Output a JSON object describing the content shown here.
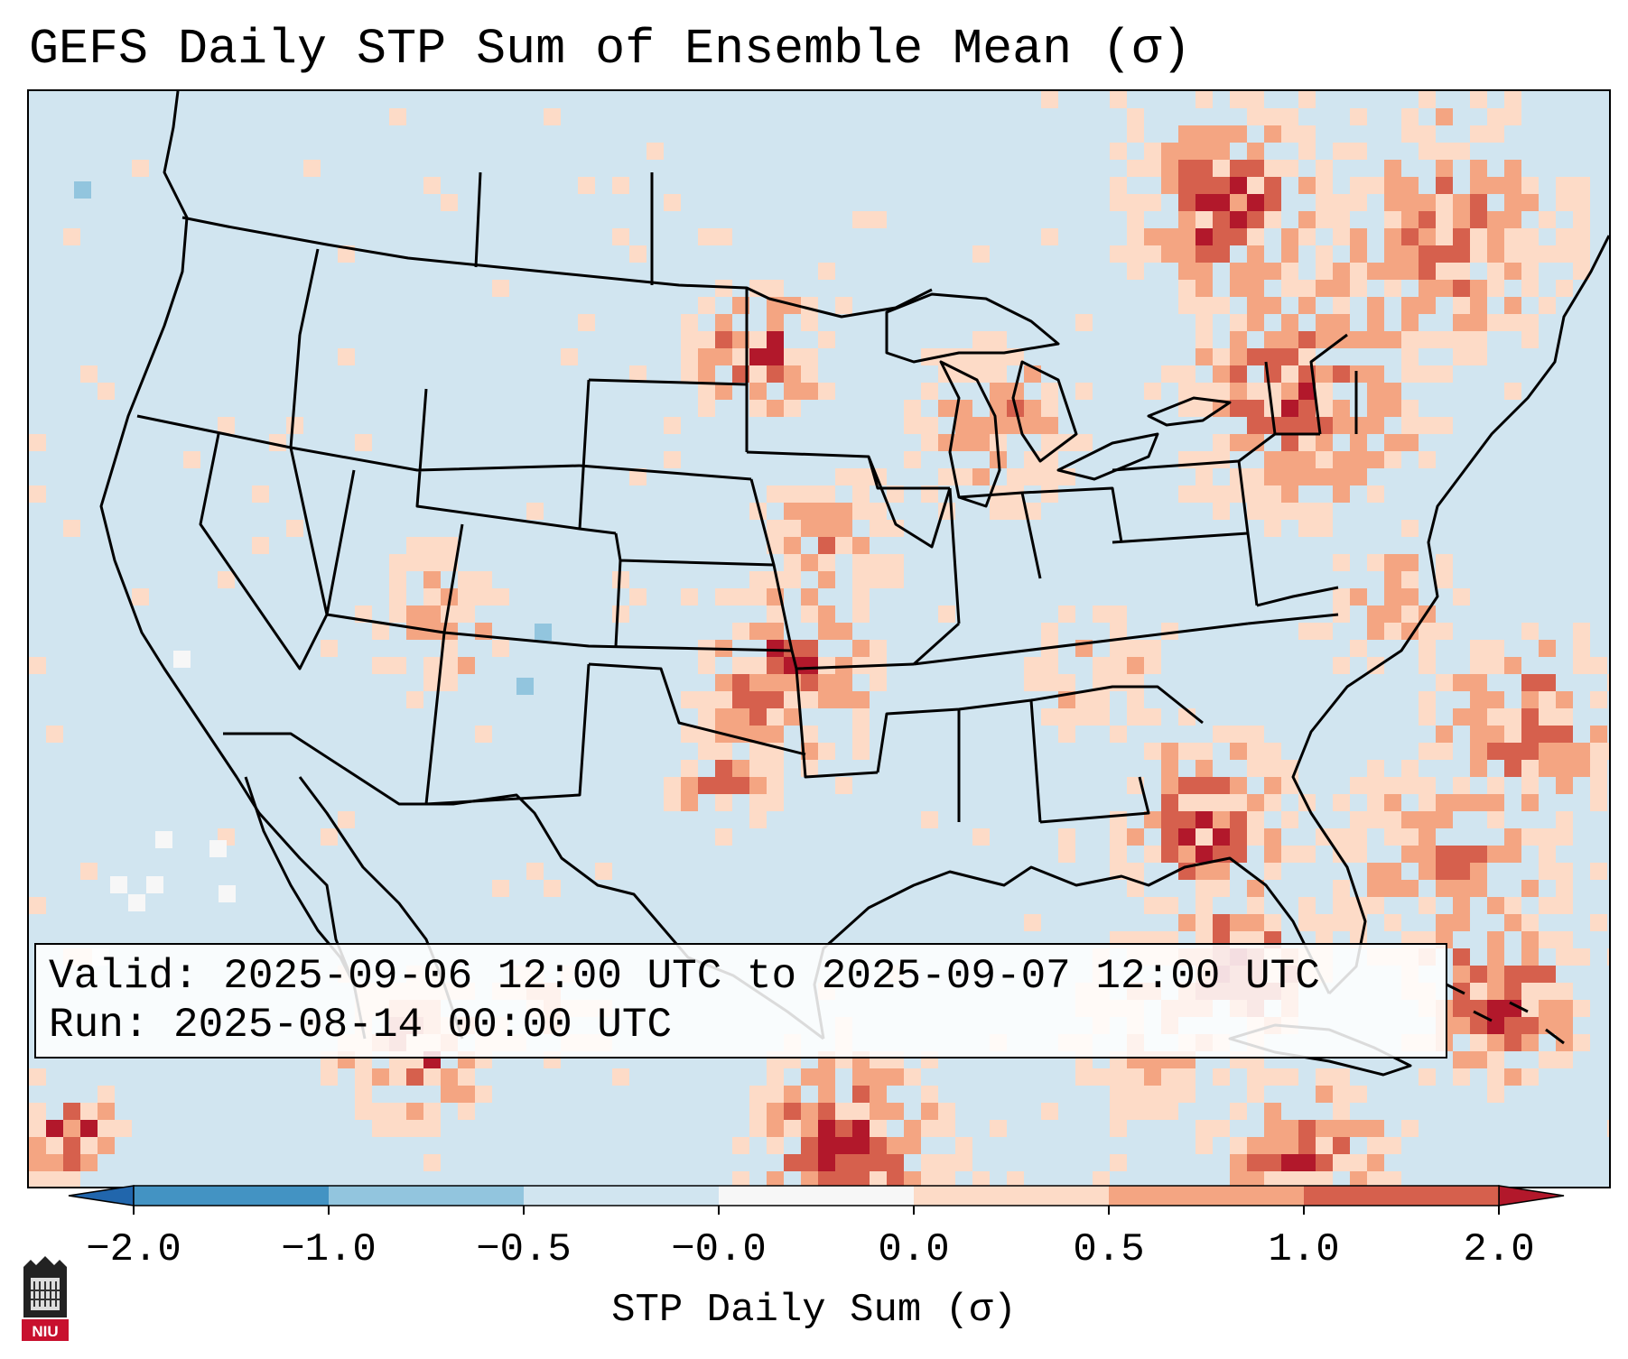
{
  "title": "GEFS Daily STP Sum of Ensemble Mean (σ)",
  "info": {
    "valid_line": "Valid: 2025-09-06 12:00 UTC to 2025-09-07 12:00 UTC",
    "run_line": "Run:   2025-08-14 00:00 UTC"
  },
  "colorbar": {
    "label": "STP Daily Sum (σ)",
    "ticks": [
      "−2.0",
      "−1.0",
      "−0.5",
      "−0.0",
      "0.0",
      "0.5",
      "1.0",
      "2.0"
    ],
    "colors": [
      "#4393c3",
      "#92c5de",
      "#d1e5f0",
      "#f7f7f7",
      "#fddbc7",
      "#f4a582",
      "#d6604d"
    ],
    "extend_low_color": "#2166ac",
    "extend_high_color": "#b2182b"
  },
  "logo": {
    "text": "NIU",
    "icon": "niu-university-shield-icon",
    "color": "#c8102e"
  },
  "map": {
    "background_color": "#d1e5f0",
    "palette": {
      "1": "#fddbc7",
      "2": "#f4a582",
      "3": "#d6604d",
      "4": "#b2182b",
      "5": "#92c5de",
      "6": "#f7f7f7"
    }
  }
}
